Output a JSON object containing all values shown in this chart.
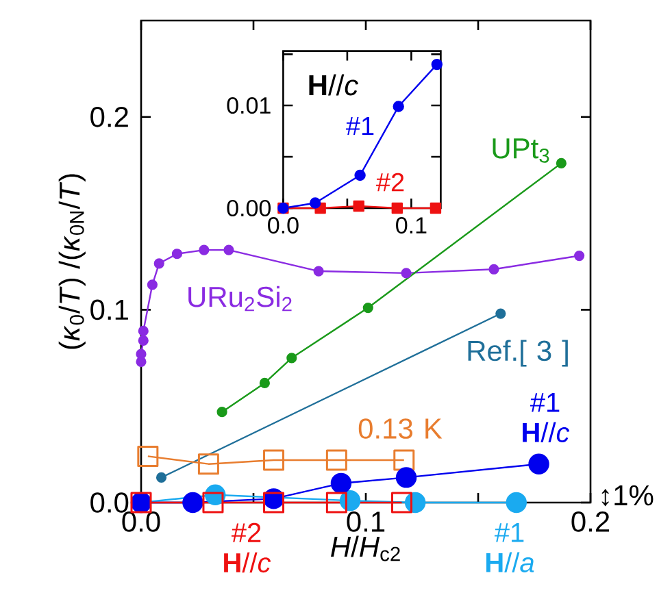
{
  "chart_data": [
    {
      "type": "line",
      "xlabel": "*H*/*H*$_{c2}$",
      "ylabel": "(*κ*$_{0}$/*T*) /(*κ*$_{0N}$/*T*)",
      "xlim": [
        0,
        0.2
      ],
      "ylim": [
        0,
        0.25
      ],
      "xticks": [
        {
          "value": 0,
          "label": "0.0"
        },
        {
          "value": 0.05,
          "label": null
        },
        {
          "value": 0.1,
          "label": "0.1"
        },
        {
          "value": 0.15,
          "label": null
        },
        {
          "value": 0.2,
          "label": "0.2"
        }
      ],
      "yticks": [
        {
          "value": 0,
          "label": "0.0"
        },
        {
          "value": 0.1,
          "label": "0.1"
        },
        {
          "value": 0.2,
          "label": "0.2"
        }
      ],
      "grid": false,
      "legend": false,
      "annotations": [
        "↕1%"
      ],
      "series": [
        {
          "name": "URu$_{2}$Si$_{2}$",
          "color": "#8a2be2",
          "marker": "circle",
          "x": [
            0.0,
            0.0,
            0.001,
            0.001,
            0.005,
            0.008,
            0.016,
            0.028,
            0.039,
            0.079,
            0.118,
            0.157,
            0.195
          ],
          "values": [
            0.073,
            0.077,
            0.084,
            0.089,
            0.113,
            0.124,
            0.129,
            0.131,
            0.131,
            0.12,
            0.119,
            0.121,
            0.128
          ]
        },
        {
          "name": "UPt$_{3}$",
          "color": "#1a9a1a",
          "marker": "circle",
          "x": [
            0.036,
            0.055,
            0.067,
            0.101,
            0.187
          ],
          "values": [
            0.047,
            0.062,
            0.075,
            0.101,
            0.176
          ]
        },
        {
          "name": "Ref.[ 3 ]",
          "color": "#1f6f99",
          "marker": "circle",
          "x": [
            0.009,
            0.16
          ],
          "values": [
            0.013,
            0.098
          ]
        },
        {
          "name": "0.13 K",
          "color": "#e87d2f",
          "marker": "square",
          "x": [
            0.003,
            0.03,
            0.059,
            0.087,
            0.117
          ],
          "values": [
            0.024,
            0.02,
            0.022,
            0.022,
            0.022
          ]
        },
        {
          "name": "#1 **H**//*a*",
          "color": "#1aaaf0",
          "marker": "circle",
          "x": [
            0.0,
            0.033,
            0.093,
            0.122,
            0.167
          ],
          "values": [
            0.0,
            0.004,
            0.001,
            0.0,
            0.0
          ]
        },
        {
          "name": "#1 **H**//*c*",
          "color": "#0000ee",
          "marker": "circle",
          "x": [
            0.0,
            0.023,
            0.059,
            0.089,
            0.118,
            0.177
          ],
          "values": [
            0.0,
            0.0,
            0.002,
            0.01,
            0.013,
            0.02
          ]
        },
        {
          "name": "#2 **H**//*c*",
          "color": "#ee1111",
          "marker": "square",
          "x": [
            0.0,
            0.032,
            0.059,
            0.087,
            0.116
          ],
          "values": [
            0.0,
            0.0,
            0.0,
            0.0,
            0.0
          ]
        }
      ]
    },
    {
      "type": "line",
      "xlim": [
        0,
        0.123
      ],
      "ylim": [
        0,
        0.0153
      ],
      "xticks": [
        {
          "value": 0,
          "label": "0.0"
        },
        {
          "value": 0.05,
          "label": null
        },
        {
          "value": 0.1,
          "label": "0.1"
        }
      ],
      "yticks": [
        {
          "value": 0,
          "label": "0.00"
        },
        {
          "value": 0.005,
          "label": null
        },
        {
          "value": 0.01,
          "label": "0.01"
        },
        {
          "value": 0.015,
          "label": null
        }
      ],
      "grid": false,
      "legend": false,
      "annotations": [
        "**H**//*c*"
      ],
      "series": [
        {
          "name": "#2",
          "color": "#ee1111",
          "marker": "square",
          "x": [
            0.0,
            0.029,
            0.059,
            0.089,
            0.119
          ],
          "values": [
            0.0,
            0.0,
            0.0002,
            0.0,
            0.0
          ]
        },
        {
          "name": "#1",
          "color": "#0000ee",
          "marker": "circle",
          "x": [
            0.0,
            0.025,
            0.06,
            0.09,
            0.12
          ],
          "values": [
            0.0,
            0.0005,
            0.0032,
            0.0099,
            0.014
          ]
        }
      ]
    }
  ]
}
